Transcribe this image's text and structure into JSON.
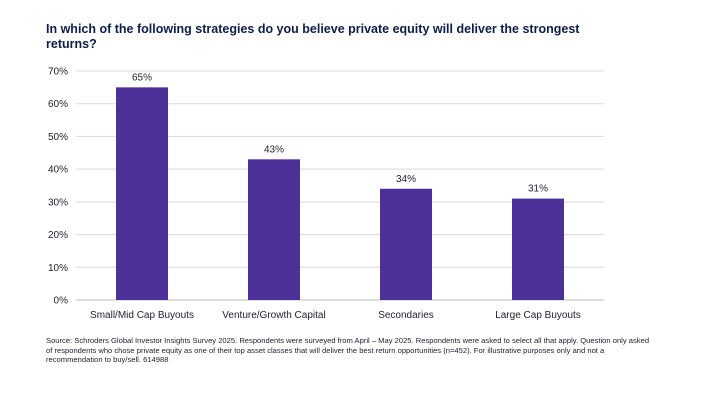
{
  "title": "In which of the following strategies do you believe private equity will deliver the strongest returns?",
  "source": "Source: Schroders Global Investor Insights Survey 2025. Respondents were surveyed from April – May 2025. Respondents were asked to select all that apply. Question only asked of respondents who chose private equity as one of their top asset classes that will deliver the best return opportunities (n=452). For illustrative purposes only and not a recommendation to buy/sell.  614988",
  "colors": {
    "bar": "#4e3099",
    "grid": "#d9d9d9",
    "text": "#1f1f2e"
  },
  "chart_data": {
    "type": "bar",
    "categories": [
      "Small/Mid Cap Buyouts",
      "Venture/Growth Capital",
      "Secondaries",
      "Large Cap Buyouts"
    ],
    "values": [
      65,
      43,
      34,
      31
    ],
    "data_labels": [
      "65%",
      "43%",
      "34%",
      "31%"
    ],
    "ylim": [
      0,
      70
    ],
    "yticks": [
      0,
      10,
      20,
      30,
      40,
      50,
      60,
      70
    ],
    "ytick_labels": [
      "0%",
      "10%",
      "20%",
      "30%",
      "40%",
      "50%",
      "60%",
      "70%"
    ],
    "grid": true,
    "legend": "none"
  }
}
